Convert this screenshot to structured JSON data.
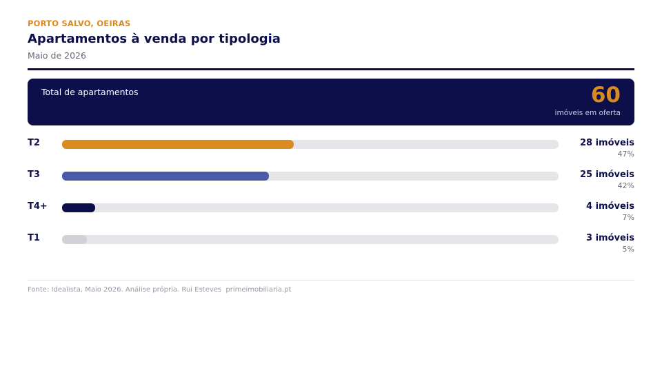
{
  "header": {
    "eyebrow": "PORTO SALVO, OEIRAS",
    "title": "Apartamentos à venda por tipologia",
    "subtitle": "Maio de 2026"
  },
  "summary": {
    "label": "Total de apartamentos",
    "value": "60",
    "note": "imóveis em oferta"
  },
  "colors": {
    "navy": "#0d0f4a",
    "accent": "#d98b21",
    "blue": "#4a5aa8",
    "gray": "#d0d1d9",
    "track": "#e6e6ea"
  },
  "chart_data": {
    "type": "bar",
    "orientation": "horizontal",
    "total": 60,
    "categories": [
      "T2",
      "T3",
      "T4+",
      "T1"
    ],
    "values": [
      28,
      25,
      4,
      3
    ],
    "percent_labels": [
      "47%",
      "42%",
      "7%",
      "5%"
    ],
    "count_labels": [
      "28 imóveis",
      "25 imóveis",
      "4 imóveis",
      "3 imóveis"
    ],
    "bar_colors": [
      "#d98b21",
      "#4a5aa8",
      "#0d0f4a",
      "#d0d1d9"
    ],
    "xlim": [
      0,
      60
    ]
  },
  "footer": {
    "text": "Fonte: Idealista, Maio 2026. Análise própria. Rui Esteves  primeimobiliaria.pt"
  }
}
